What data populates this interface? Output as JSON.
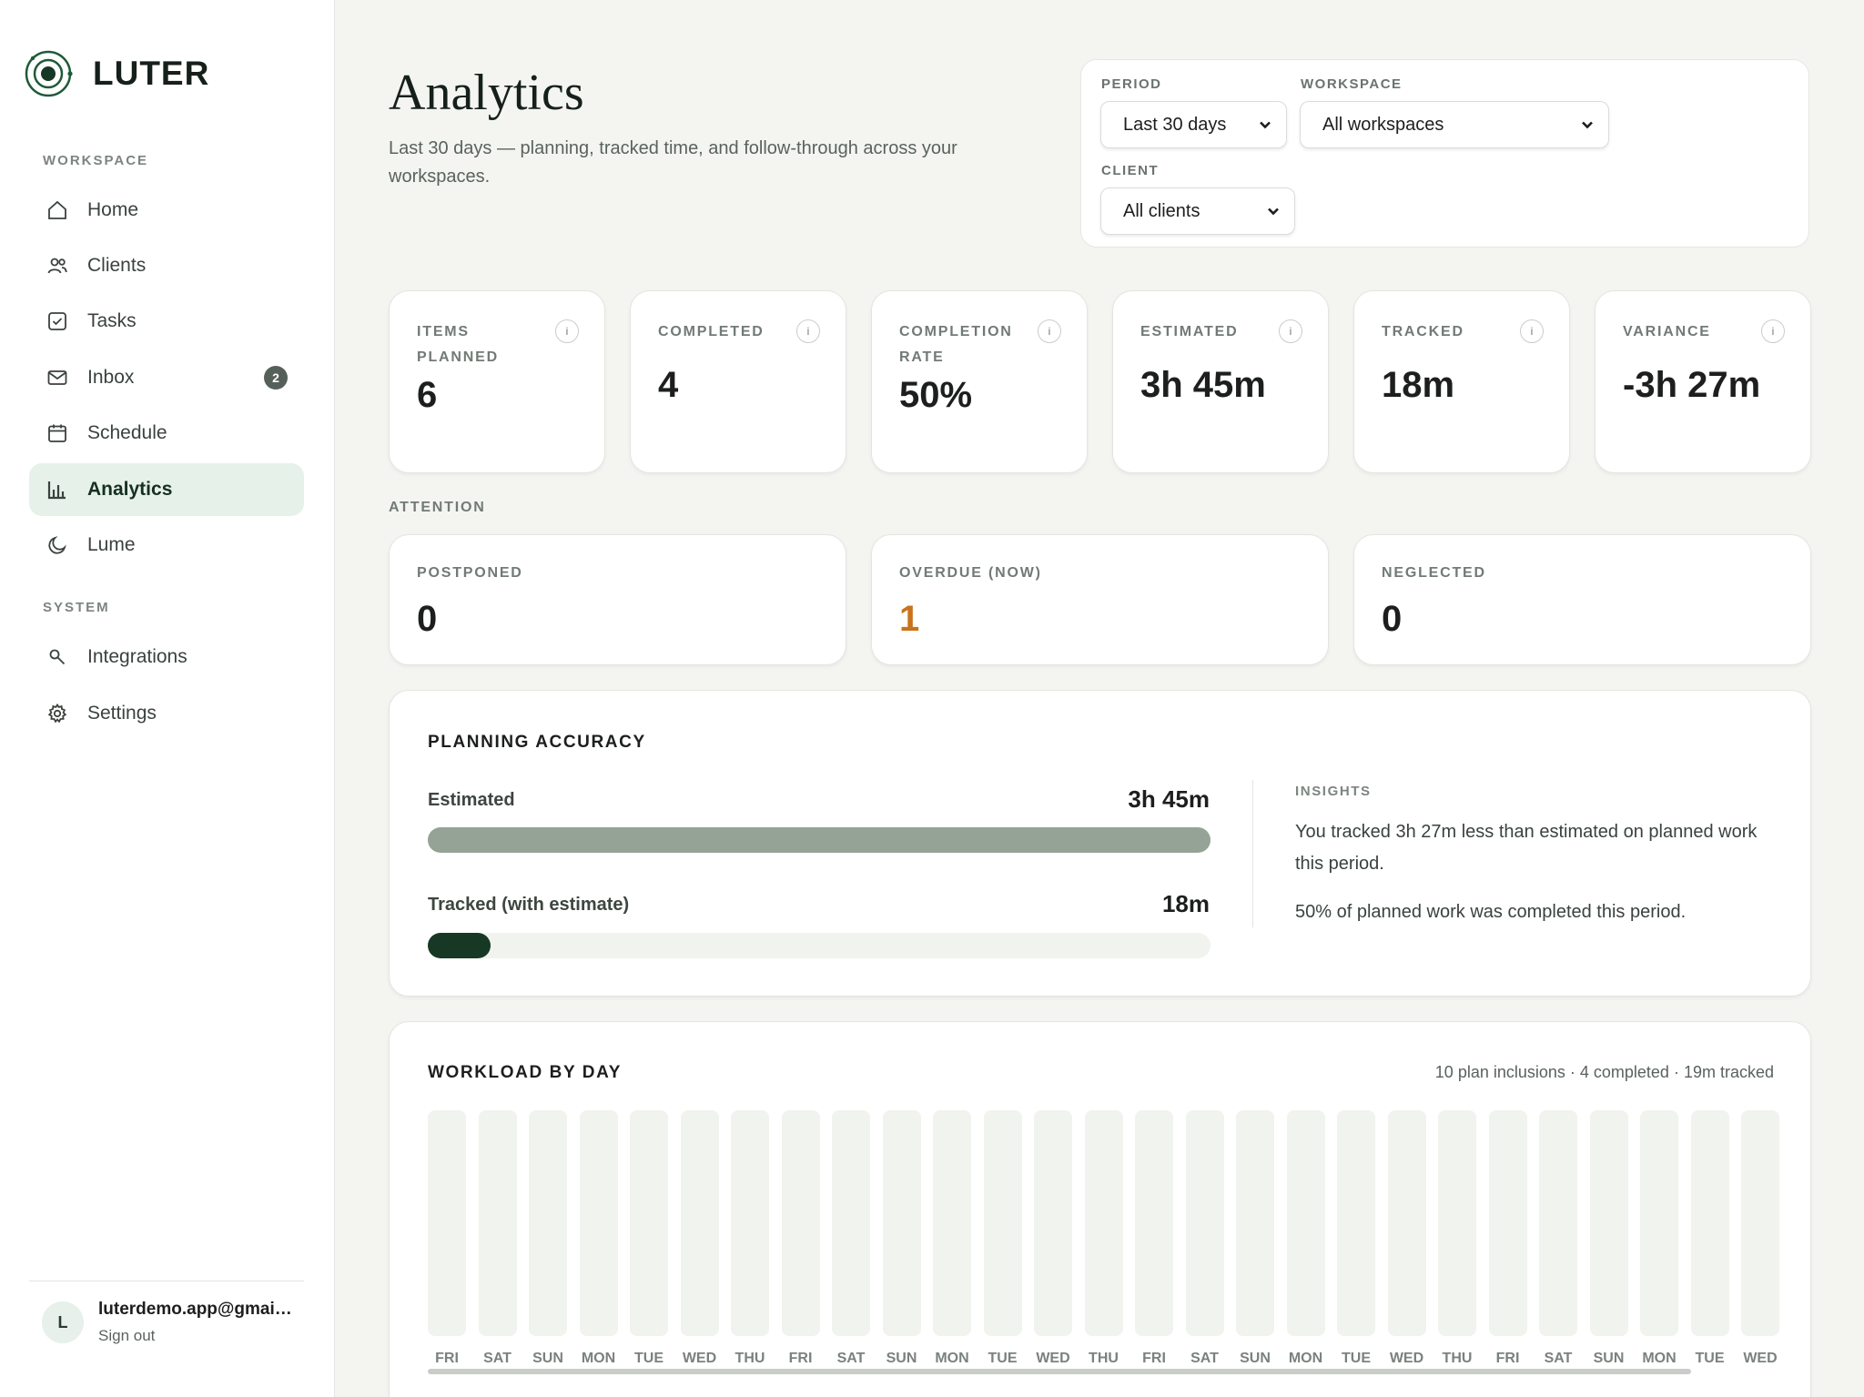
{
  "app": {
    "name": "LUTER"
  },
  "sidebar": {
    "workspace_label": "WORKSPACE",
    "system_label": "SYSTEM",
    "items": [
      {
        "label": "Home",
        "icon": "home-icon"
      },
      {
        "label": "Clients",
        "icon": "users-icon"
      },
      {
        "label": "Tasks",
        "icon": "checkbox-icon"
      },
      {
        "label": "Inbox",
        "icon": "mail-icon",
        "badge": "2"
      },
      {
        "label": "Schedule",
        "icon": "calendar-icon"
      },
      {
        "label": "Analytics",
        "icon": "bar-chart-icon",
        "active": true
      },
      {
        "label": "Lume",
        "icon": "moon-icon"
      }
    ],
    "system_items": [
      {
        "label": "Integrations",
        "icon": "key-icon"
      },
      {
        "label": "Settings",
        "icon": "gear-icon"
      }
    ],
    "user": {
      "initial": "L",
      "email": "luterdemo.app@gmail.com",
      "sign_out": "Sign out"
    }
  },
  "header": {
    "title": "Analytics",
    "subtitle": "Last 30 days — planning, tracked time, and follow-through across your workspaces."
  },
  "filters": {
    "period": {
      "label": "PERIOD",
      "value": "Last 30 days"
    },
    "workspace": {
      "label": "WORKSPACE",
      "value": "All workspaces"
    },
    "client": {
      "label": "CLIENT",
      "value": "All clients"
    }
  },
  "stats": [
    {
      "label": "ITEMS PLANNED",
      "value": "6"
    },
    {
      "label": "COMPLETED",
      "value": "4"
    },
    {
      "label": "COMPLETION RATE",
      "value": "50%"
    },
    {
      "label": "ESTIMATED",
      "value": "3h 45m"
    },
    {
      "label": "TRACKED",
      "value": "18m"
    },
    {
      "label": "VARIANCE",
      "value": "-3h 27m"
    }
  ],
  "info_glyph": "i",
  "attention": {
    "label": "ATTENTION",
    "items": [
      {
        "label": "POSTPONED",
        "value": "0"
      },
      {
        "label": "OVERDUE (NOW)",
        "value": "1",
        "color": "#c9731a"
      },
      {
        "label": "NEGLECTED",
        "value": "0"
      }
    ]
  },
  "planning": {
    "title": "PLANNING ACCURACY",
    "estimated": {
      "label": "Estimated",
      "value": "3h 45m",
      "fill": 1.0,
      "color": "#95a396"
    },
    "tracked": {
      "label": "Tracked (with estimate)",
      "value": "18m",
      "fill": 0.08,
      "color": "#173824"
    },
    "insights_label": "INSIGHTS",
    "insights": [
      "You tracked 3h 27m less than estimated on planned work this period.",
      "50% of planned work was completed this period."
    ]
  },
  "workload": {
    "title": "WORKLOAD BY DAY",
    "summary": "10 plan inclusions · 4 completed · 19m tracked",
    "days": [
      "FRI",
      "SAT",
      "SUN",
      "MON",
      "TUE",
      "WED",
      "THU",
      "FRI",
      "SAT",
      "SUN",
      "MON",
      "TUE",
      "WED",
      "THU",
      "FRI",
      "SAT",
      "SUN",
      "MON",
      "TUE",
      "WED",
      "THU",
      "FRI",
      "SAT",
      "SUN",
      "MON",
      "TUE",
      "WED"
    ]
  }
}
